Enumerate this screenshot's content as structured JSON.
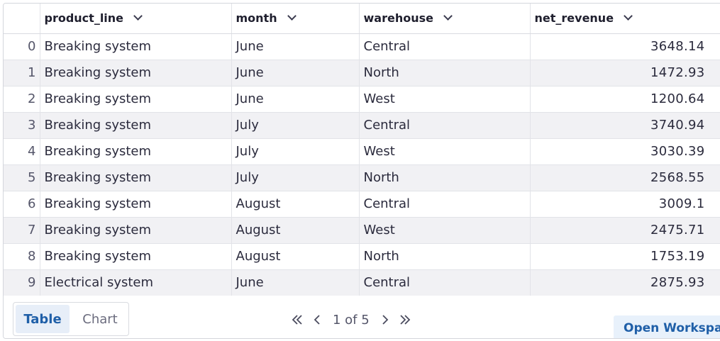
{
  "table": {
    "columns": [
      {
        "key": "index",
        "label": ""
      },
      {
        "key": "product_line",
        "label": "product_line"
      },
      {
        "key": "month",
        "label": "month"
      },
      {
        "key": "warehouse",
        "label": "warehouse"
      },
      {
        "key": "net_revenue",
        "label": "net_revenue"
      }
    ],
    "rows": [
      {
        "index": "0",
        "product_line": "Breaking system",
        "month": "June",
        "warehouse": "Central",
        "net_revenue": "3648.14"
      },
      {
        "index": "1",
        "product_line": "Breaking system",
        "month": "June",
        "warehouse": "North",
        "net_revenue": "1472.93"
      },
      {
        "index": "2",
        "product_line": "Breaking system",
        "month": "June",
        "warehouse": "West",
        "net_revenue": "1200.64"
      },
      {
        "index": "3",
        "product_line": "Breaking system",
        "month": "July",
        "warehouse": "Central",
        "net_revenue": "3740.94"
      },
      {
        "index": "4",
        "product_line": "Breaking system",
        "month": "July",
        "warehouse": "West",
        "net_revenue": "3030.39"
      },
      {
        "index": "5",
        "product_line": "Breaking system",
        "month": "July",
        "warehouse": "North",
        "net_revenue": "2568.55"
      },
      {
        "index": "6",
        "product_line": "Breaking system",
        "month": "August",
        "warehouse": "Central",
        "net_revenue": "3009.1"
      },
      {
        "index": "7",
        "product_line": "Breaking system",
        "month": "August",
        "warehouse": "West",
        "net_revenue": "2475.71"
      },
      {
        "index": "8",
        "product_line": "Breaking system",
        "month": "August",
        "warehouse": "North",
        "net_revenue": "1753.19"
      },
      {
        "index": "9",
        "product_line": "Electrical system",
        "month": "June",
        "warehouse": "Central",
        "net_revenue": "2875.93"
      }
    ]
  },
  "footer": {
    "view_toggle": {
      "table_label": "Table",
      "chart_label": "Chart",
      "selected": "Table"
    },
    "pagination": {
      "text": "1 of 5"
    },
    "open_workspace_label": "Open Workspace"
  },
  "icons": {
    "sort": "chevron-down-icon",
    "first": "chevrons-left-icon",
    "prev": "chevron-left-icon",
    "next": "chevron-right-icon",
    "last": "chevrons-right-icon"
  },
  "colors": {
    "accent": "#1f5fa8",
    "accent_bg": "#e8f1fb",
    "row_alt": "#f1f1f4",
    "border": "#e2e3e8"
  }
}
